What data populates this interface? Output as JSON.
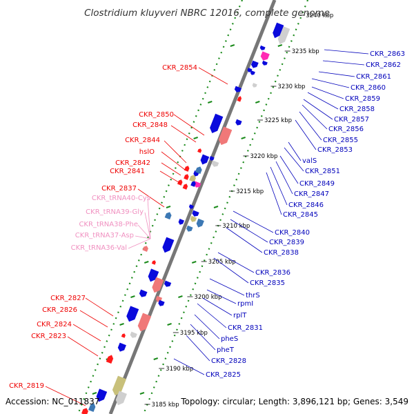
{
  "title": "Clostridium kluyveri NBRC 12016, complete genome",
  "accession": "Accession: NC_011837",
  "stats": "Topology: circular; Length: 3,896,121 bp; Genes: 3,549",
  "colors": {
    "backbone": "#777777",
    "gene_blue": "#0a0adc",
    "gene_red": "#ff1a1a",
    "gene_pink": "#f07878",
    "gene_magenta": "#ff2ab4",
    "gene_gray": "#cfcfcf",
    "gene_olive": "#c8c07a",
    "gene_steel": "#3c78b4",
    "label_forward": "#ee0000",
    "label_reverse": "#0000bb",
    "label_trna": "#f090c0",
    "scale_dots": "#1a8a1a",
    "gc_dots": "#1a8a1a"
  },
  "ticks": [
    "3240 kbp",
    "3235 kbp",
    "3230 kbp",
    "3225 kbp",
    "3220 kbp",
    "3215 kbp",
    "3210 kbp",
    "3205 kbp",
    "3200 kbp",
    "3195 kbp",
    "3190 kbp",
    "3185 kbp"
  ],
  "labels_reverse": [
    "CKR_2863",
    "CKR_2862",
    "CKR_2861",
    "CKR_2860",
    "CKR_2859",
    "CKR_2858",
    "CKR_2857",
    "CKR_2856",
    "CKR_2855",
    "CKR_2853",
    "valS",
    "CKR_2851",
    "CKR_2849",
    "CKR_2847",
    "CKR_2846",
    "CKR_2845",
    "CKR_2840",
    "CKR_2839",
    "CKR_2838",
    "CKR_2836",
    "CKR_2835",
    "thrS",
    "rpmI",
    "rplT",
    "CKR_2831",
    "pheS",
    "pheT",
    "CKR_2828",
    "CKR_2825"
  ],
  "labels_forward": [
    "CKR_2854",
    "CKR_2850",
    "CKR_2848",
    "CKR_2844",
    "hslO",
    "CKR_2842",
    "CKR_2841",
    "CKR_2837",
    "CKR_2827",
    "CKR_2826",
    "CKR_2824",
    "CKR_2823",
    "CKR_2819"
  ],
  "labels_trna": [
    "CKR_tRNA40-Cys",
    "CKR_tRNA39-Gly",
    "CKR_tRNA38-Phe",
    "CKR_tRNA37-Asp",
    "CKR_tRNA36-Val"
  ]
}
